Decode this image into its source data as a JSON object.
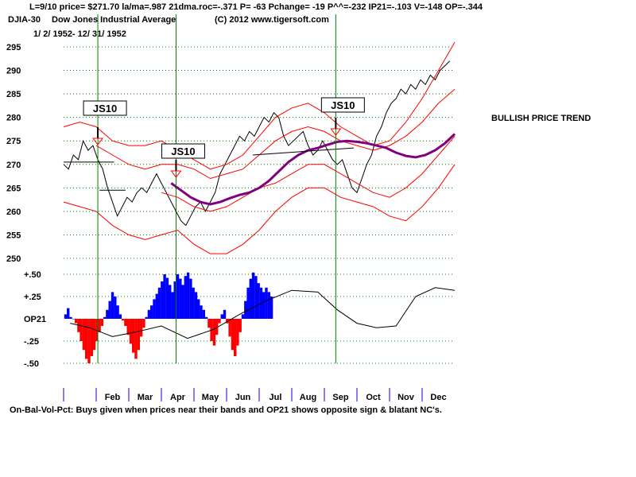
{
  "header": {
    "line1": "L=9/10  price= $271.70  la/ma=.987 21dma.roc=-.371 P= -63 Pchange= -19 P^^=-232 IP21=-.103 V=-148 OP=-.344",
    "symbol": "DJIA-30",
    "name": "Dow Jones Industrial Average",
    "copyright": "(C) 2012 www.tigersoft.com",
    "date_range": "1/ 2/ 1952-  12/ 31/ 1952"
  },
  "annotation": "BULLISH PRICE TREND",
  "footer": "On-Bal-Vol-Pct: Buys given when prices near their bands and OP21 shows opposite sign & blatant NC's.",
  "colors": {
    "price": "#000000",
    "band": "#ff0000",
    "ma": "#800080",
    "signal_line": "#008000",
    "grid": "#008000",
    "positive_bar": "#0000ff",
    "negative_bar": "#ff0000"
  },
  "chart_data": [
    {
      "type": "line",
      "title": "Dow Jones Industrial Average 1952",
      "ylim": [
        250,
        296
      ],
      "y_ticks": [
        295,
        290,
        285,
        280,
        275,
        270,
        265,
        260,
        255,
        250
      ],
      "x_range": [
        0,
        12
      ],
      "signals": [
        {
          "label": "JS10",
          "x": 1.05
        },
        {
          "label": "JS10",
          "x": 3.45
        },
        {
          "label": "JS10",
          "x": 8.35
        }
      ],
      "series": [
        {
          "name": "DJIA Close",
          "color": "#000000",
          "x": [
            0,
            0.15,
            0.3,
            0.45,
            0.6,
            0.75,
            0.9,
            1.05,
            1.2,
            1.35,
            1.5,
            1.65,
            1.8,
            1.95,
            2.1,
            2.25,
            2.4,
            2.55,
            2.7,
            2.85,
            3.0,
            3.15,
            3.3,
            3.45,
            3.6,
            3.75,
            3.9,
            4.05,
            4.2,
            4.35,
            4.5,
            4.65,
            4.8,
            4.95,
            5.1,
            5.25,
            5.4,
            5.55,
            5.7,
            5.85,
            6.0,
            6.15,
            6.3,
            6.45,
            6.6,
            6.75,
            6.9,
            7.05,
            7.2,
            7.35,
            7.5,
            7.65,
            7.8,
            7.95,
            8.1,
            8.25,
            8.4,
            8.55,
            8.7,
            8.85,
            9.0,
            9.15,
            9.3,
            9.45,
            9.6,
            9.75,
            9.9,
            10.05,
            10.2,
            10.35,
            10.5,
            10.65,
            10.8,
            10.95,
            11.1,
            11.25,
            11.4,
            11.55,
            11.7,
            11.85
          ],
          "values": [
            270,
            269,
            272,
            271,
            275,
            273,
            274,
            271,
            269,
            265,
            262,
            259,
            261,
            263,
            262,
            264,
            265,
            264,
            266,
            268,
            266,
            264,
            262,
            260,
            258,
            257,
            259,
            261,
            262,
            260,
            262,
            264,
            268,
            270,
            272,
            274,
            276,
            275,
            277,
            276,
            278,
            280,
            279,
            281,
            280,
            276,
            274,
            275,
            276,
            277,
            274,
            272,
            273,
            275,
            273,
            271,
            270,
            271,
            268,
            265,
            264,
            267,
            270,
            272,
            276,
            278,
            281,
            283,
            284,
            286,
            285,
            287,
            286,
            288,
            287,
            289,
            288,
            290,
            291,
            292
          ]
        },
        {
          "name": "Upper Band",
          "color": "#ff0000",
          "x": [
            0,
            0.5,
            1.0,
            1.5,
            2.0,
            2.5,
            3.0,
            3.5,
            4.0,
            4.5,
            5.0,
            5.5,
            6.0,
            6.5,
            7.0,
            7.5,
            8.0,
            8.5,
            9.0,
            9.5,
            10.0,
            10.5,
            11.0,
            11.5,
            12.0
          ],
          "values": [
            278,
            279,
            278,
            275,
            274,
            274,
            275,
            273,
            271,
            269,
            270,
            272,
            276,
            280,
            282,
            283,
            281,
            278,
            276,
            274,
            275,
            279,
            284,
            290,
            296
          ]
        },
        {
          "name": "Lower Band",
          "color": "#ff0000",
          "x": [
            0,
            0.5,
            1.0,
            1.5,
            2.0,
            2.5,
            3.0,
            3.5,
            4.0,
            4.5,
            5.0,
            5.5,
            6.0,
            6.5,
            7.0,
            7.5,
            8.0,
            8.5,
            9.0,
            9.5,
            10.0,
            10.5,
            11.0,
            11.5,
            12.0
          ],
          "values": [
            262,
            261,
            260,
            257,
            255,
            254,
            255,
            256,
            253,
            251,
            251,
            253,
            256,
            260,
            263,
            265,
            265,
            263,
            262,
            261,
            259,
            258,
            261,
            265,
            270
          ]
        },
        {
          "name": "Inner Upper Band",
          "color": "#ff0000",
          "x": [
            1.0,
            1.5,
            2.0,
            2.5,
            3.0,
            3.5,
            4.0,
            4.5,
            5.0,
            5.5,
            6.0,
            6.5,
            7.0,
            7.5,
            8.0,
            8.5,
            9.0,
            9.5,
            10.0,
            10.5,
            11.0,
            11.5,
            12.0
          ],
          "values": [
            274,
            272,
            270,
            269,
            270,
            270,
            269,
            267,
            268,
            269,
            272,
            275,
            277,
            278,
            277,
            275,
            274,
            273,
            274,
            276,
            279,
            283,
            286
          ]
        },
        {
          "name": "Inner Lower Band",
          "color": "#ff0000",
          "x": [
            3.0,
            3.5,
            4.0,
            4.5,
            5.0,
            5.5,
            6.0,
            6.5,
            7.0,
            7.5,
            8.0,
            8.5,
            9.0,
            9.5,
            10.0,
            10.5,
            11.0,
            11.5,
            12.0
          ],
          "values": [
            264,
            263,
            261,
            260,
            261,
            263,
            265,
            266,
            268,
            270,
            270,
            268,
            266,
            264,
            263,
            265,
            268,
            272,
            276
          ]
        },
        {
          "name": "Moving Average",
          "color": "#800080",
          "x": [
            3.3,
            3.6,
            3.9,
            4.2,
            4.5,
            4.8,
            5.1,
            5.4,
            5.7,
            6.0,
            6.3,
            6.6,
            6.9,
            7.2,
            7.5,
            7.8,
            8.1,
            8.4,
            8.7,
            9.0,
            9.3,
            9.6,
            9.9,
            10.2,
            10.5,
            10.8,
            11.1,
            11.4,
            11.7,
            12.0
          ],
          "values": [
            266,
            264.5,
            263,
            262,
            261.5,
            262,
            262.8,
            263.5,
            264,
            265,
            266.5,
            268.5,
            270.5,
            272,
            273,
            273.5,
            274.2,
            274.8,
            275,
            274.8,
            274.5,
            274,
            273.5,
            272.5,
            271.8,
            271.5,
            272,
            273,
            274.5,
            276.5
          ]
        },
        {
          "name": "Resistance Segments",
          "color": "#000000",
          "segments": [
            {
              "x": [
                0,
                1.55
              ],
              "y": [
                270.5,
                270.5
              ]
            },
            {
              "x": [
                1.1,
                1.9
              ],
              "y": [
                264.5,
                264.5
              ]
            },
            {
              "x": [
                5.8,
                8.9
              ],
              "y": [
                272,
                273.5
              ]
            }
          ]
        }
      ]
    },
    {
      "type": "bar",
      "title": "OP21 On-Bal-Vol-Pct",
      "ylim": [
        -0.5,
        0.55
      ],
      "y_ticks": [
        0.5,
        0.25,
        0,
        -0.25,
        -0.5
      ],
      "y_tick_labels": [
        "+.50",
        "+.25",
        "OP21",
        "-.25",
        "-.50"
      ],
      "bars_x_step": 0.08,
      "values": [
        0.05,
        0.12,
        0.02,
        0,
        -0.05,
        -0.15,
        -0.25,
        -0.35,
        -0.45,
        -0.5,
        -0.42,
        -0.35,
        -0.25,
        -0.15,
        -0.08,
        0.02,
        0.1,
        0.2,
        0.3,
        0.25,
        0.15,
        0.05,
        -0.02,
        -0.08,
        -0.18,
        -0.28,
        -0.38,
        -0.45,
        -0.35,
        -0.2,
        -0.1,
        0.02,
        0.1,
        0.15,
        0.22,
        0.28,
        0.35,
        0.42,
        0.5,
        0.46,
        0.38,
        0.3,
        0.42,
        0.5,
        0.45,
        0.38,
        0.48,
        0.52,
        0.45,
        0.35,
        0.3,
        0.22,
        0.15,
        0.1,
        0.02,
        -0.1,
        -0.25,
        -0.3,
        -0.18,
        -0.05,
        0.05,
        0.1,
        -0.05,
        -0.2,
        -0.35,
        -0.42,
        -0.3,
        -0.15,
        0.05,
        0.2,
        0.35,
        0.45,
        0.52,
        0.48,
        0.4,
        0.35,
        0.3,
        0.35,
        0.3,
        0.25
      ],
      "ma_line": {
        "x": [
          0.2,
          0.8,
          1.5,
          2.2,
          3.0,
          3.8,
          4.6,
          5.4,
          6.2,
          7.0,
          7.8,
          8.4,
          9.0,
          9.6,
          10.2,
          10.8,
          11.4,
          12.0
        ],
        "values": [
          -0.05,
          -0.1,
          -0.2,
          -0.15,
          -0.08,
          -0.22,
          -0.12,
          0.05,
          0.2,
          0.32,
          0.3,
          0.1,
          -0.05,
          -0.1,
          -0.08,
          0.25,
          0.35,
          0.32
        ]
      }
    }
  ],
  "x_axis": {
    "months": [
      "Feb",
      "Mar",
      "Apr",
      "May",
      "Jun",
      "Jul",
      "Aug",
      "Sep",
      "Oct",
      "Nov",
      "Dec"
    ]
  }
}
